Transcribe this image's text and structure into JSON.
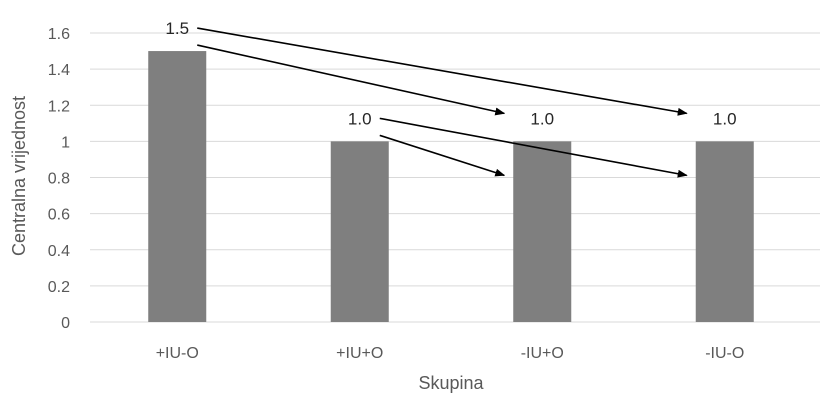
{
  "chart_data": {
    "type": "bar",
    "categories": [
      "+IU-O",
      "+IU+O",
      "-IU+O",
      "-IU-O"
    ],
    "values": [
      1.5,
      1.0,
      1.0,
      1.0
    ],
    "data_labels": [
      "1.5",
      "1.0",
      "1.0",
      "1.0"
    ],
    "xlabel": "Skupina",
    "ylabel": "Centralna vrijednost",
    "ylim": [
      0,
      1.6
    ],
    "yticks": [
      "0",
      "0.2",
      "0.4",
      "0.6",
      "0.8",
      "1",
      "1.2",
      "1.4",
      "1.6"
    ],
    "grid": true,
    "bar_color": "#7f7f7f",
    "grid_color": "#d9d9d9",
    "annotations": [
      {
        "type": "arrow",
        "from": "+IU-O",
        "to": "-IU-O"
      },
      {
        "type": "arrow",
        "from": "+IU-O",
        "to": "-IU+O"
      },
      {
        "type": "arrow",
        "from": "+IU+O",
        "to": "-IU-O"
      },
      {
        "type": "arrow",
        "from": "+IU+O",
        "to": "-IU+O"
      }
    ]
  }
}
